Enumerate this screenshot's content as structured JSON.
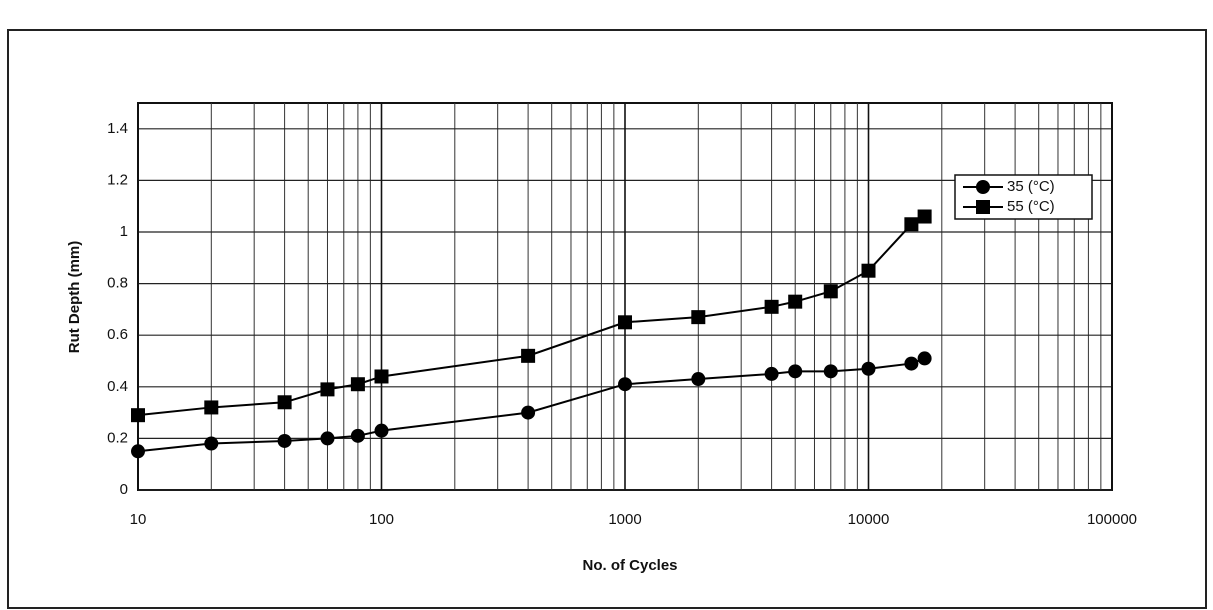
{
  "chart_data": {
    "type": "line",
    "x_label": "No. of Cycles",
    "y_label": "Rut Depth (mm)",
    "x": [
      10,
      20,
      40,
      60,
      80,
      100,
      400,
      1000,
      2000,
      4000,
      5000,
      7000,
      10000,
      15000,
      17000
    ],
    "series": [
      {
        "name": "35 (°C)",
        "color": "#000000",
        "marker": "circle",
        "values": [
          0.15,
          0.18,
          0.19,
          0.2,
          0.21,
          0.23,
          0.3,
          0.41,
          0.43,
          0.45,
          0.46,
          0.46,
          0.47,
          0.49,
          0.51
        ]
      },
      {
        "name": "55 (°C)",
        "color": "#000000",
        "marker": "square",
        "values": [
          0.29,
          0.32,
          0.34,
          0.39,
          0.41,
          0.44,
          0.52,
          0.65,
          0.67,
          0.71,
          0.73,
          0.77,
          0.85,
          1.03,
          1.06
        ]
      }
    ],
    "xlim": [
      10,
      100000
    ],
    "xticks": [
      10,
      100,
      1000,
      10000,
      100000
    ],
    "xlog": true,
    "ylim": [
      0,
      1.5
    ],
    "yticks": [
      0,
      0.2,
      0.4,
      0.6,
      0.8,
      1,
      1.2,
      1.4
    ],
    "grid": true,
    "minor_grid": true,
    "legend": "upper right"
  }
}
